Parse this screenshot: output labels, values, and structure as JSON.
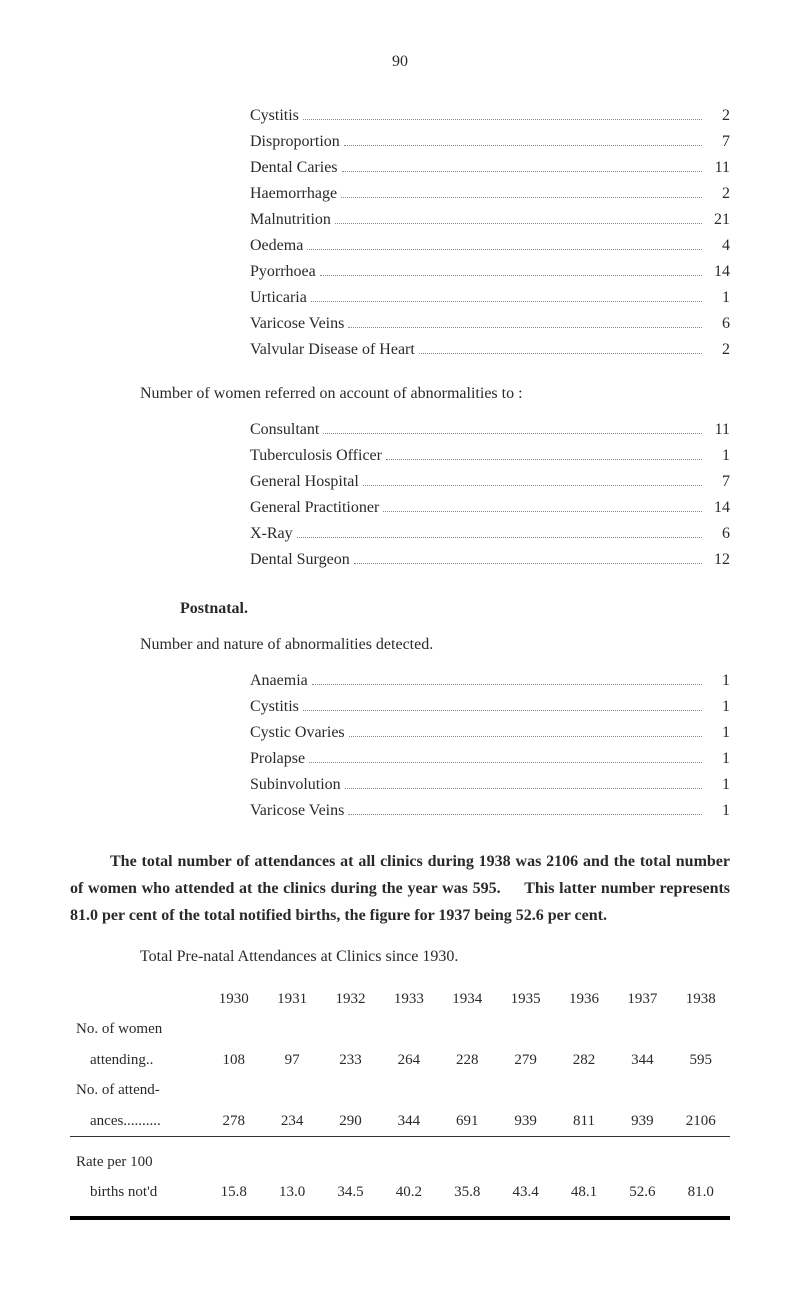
{
  "page_number": "90",
  "conditions_list_1": [
    {
      "label": "Cystitis",
      "value": "2"
    },
    {
      "label": "Disproportion",
      "value": "7"
    },
    {
      "label": "Dental Caries",
      "value": "11"
    },
    {
      "label": "Haemorrhage",
      "value": "2"
    },
    {
      "label": "Malnutrition",
      "value": "21"
    },
    {
      "label": "Oedema",
      "value": "4"
    },
    {
      "label": "Pyorrhoea",
      "value": "14"
    },
    {
      "label": "Urticaria",
      "value": "1"
    },
    {
      "label": "Varicose Veins",
      "value": "6"
    },
    {
      "label": "Valvular Disease of Heart",
      "value": "2"
    }
  ],
  "referrals_intro": "Number of women referred on account of abnormalities to :",
  "referrals_list": [
    {
      "label": "Consultant",
      "value": "11"
    },
    {
      "label": "Tuberculosis  Officer",
      "value": "1"
    },
    {
      "label": "General Hospital",
      "value": "7"
    },
    {
      "label": "General Practitioner",
      "value": "14"
    },
    {
      "label": "X-Ray",
      "value": "6"
    },
    {
      "label": "Dental Surgeon",
      "value": "12"
    }
  ],
  "postnatal_header": "Postnatal.",
  "postnatal_intro": "Number and nature of abnormalities detected.",
  "postnatal_list": [
    {
      "label": "Anaemia",
      "value": "1"
    },
    {
      "label": "Cystitis",
      "value": "1"
    },
    {
      "label": "Cystic Ovaries",
      "value": "1"
    },
    {
      "label": "Prolapse",
      "value": "1"
    },
    {
      "label": "Subinvolution",
      "value": "1"
    },
    {
      "label": "Varicose Veins",
      "value": "1"
    }
  ],
  "summary_paragraph": {
    "part1": "The total number of attendances at all clinics during 1938 was 2106 and the total number of women who attended at the clinics during the year was 595.",
    "part2": "This latter number represents 81.0 per cent of the total notified births, the figure for 1937 being 52.6 per cent."
  },
  "table_intro": "Total Pre-natal Attendances at Clinics since 1930.",
  "attendance_table": {
    "years": [
      "1930",
      "1931",
      "1932",
      "1933",
      "1934",
      "1935",
      "1936",
      "1937",
      "1938"
    ],
    "rows": [
      {
        "label1": "No. of women",
        "label2": "attending..",
        "values": [
          "108",
          "97",
          "233",
          "264",
          "228",
          "279",
          "282",
          "344",
          "595"
        ]
      },
      {
        "label1": "No. of attend-",
        "label2": "ances..........",
        "values": [
          "278",
          "234",
          "290",
          "344",
          "691",
          "939",
          "811",
          "939",
          "2106"
        ]
      }
    ],
    "rate_row": {
      "label1": "Rate per 100",
      "label2": "births not'd",
      "values": [
        "15.8",
        "13.0",
        "34.5",
        "40.2",
        "35.8",
        "43.4",
        "48.1",
        "52.6",
        "81.0"
      ]
    }
  }
}
